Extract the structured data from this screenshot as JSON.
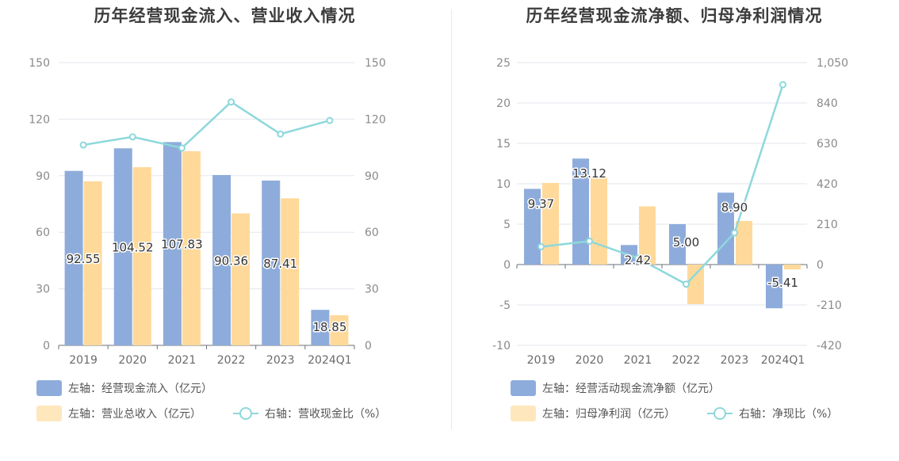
{
  "charts": [
    {
      "title": "历年经营现金流入、营业收入情况",
      "chart_data": {
        "type": "bar",
        "categories": [
          "2019",
          "2020",
          "2021",
          "2022",
          "2023",
          "2024Q1"
        ],
        "series": [
          {
            "name": "左轴：经营现金流入（亿元）",
            "type": "bar",
            "axis": "left",
            "color": "#8eacdb",
            "values": [
              92.55,
              104.52,
              107.83,
              90.36,
              87.41,
              18.85
            ],
            "labels": [
              "92.55",
              "104.52",
              "107.83",
              "90.36",
              "87.41",
              "18.85"
            ]
          },
          {
            "name": "左轴：营业总收入（亿元）",
            "type": "bar",
            "axis": "left",
            "color": "#ffd99a",
            "values": [
              87.0,
              94.5,
              103.0,
              70.0,
              78.0,
              16.0
            ]
          },
          {
            "name": "右轴：营收现金比（%）",
            "type": "line",
            "axis": "right",
            "color": "#8dd8dc",
            "values": [
              106.3,
              110.6,
              104.7,
              129.1,
              112.1,
              119.3
            ]
          }
        ],
        "y_left": {
          "range": [
            0,
            150
          ],
          "ticks": [
            "0",
            "30",
            "60",
            "90",
            "120",
            "150"
          ]
        },
        "y_right": {
          "range": [
            0,
            150
          ],
          "ticks": [
            "0",
            "30",
            "60",
            "90",
            "120",
            "150"
          ]
        },
        "grid": true,
        "legend_position": "bottom"
      }
    },
    {
      "title": "历年经营现金流净额、归母净利润情况",
      "chart_data": {
        "type": "bar",
        "categories": [
          "2019",
          "2020",
          "2021",
          "2022",
          "2023",
          "2024Q1"
        ],
        "series": [
          {
            "name": "左轴：经营活动现金流净额（亿元）",
            "type": "bar",
            "axis": "left",
            "color": "#8eacdb",
            "values": [
              9.37,
              13.12,
              2.42,
              5.0,
              8.9,
              -5.41
            ],
            "labels": [
              "9.37",
              "13.12",
              "2.42",
              "5.00",
              "8.90",
              "-5.41"
            ]
          },
          {
            "name": "左轴：归母净利润（亿元）",
            "type": "bar",
            "axis": "left",
            "color": "#ffd99a",
            "values": [
              10.1,
              10.8,
              7.2,
              -4.9,
              5.4,
              -0.6
            ]
          },
          {
            "name": "右轴：净现比（%）",
            "type": "line",
            "axis": "right",
            "color": "#8dd8dc",
            "values": [
              92.8,
              121.5,
              33.6,
              -102.0,
              164.8,
              935.0
            ]
          }
        ],
        "y_left": {
          "range": [
            -10,
            25
          ],
          "ticks": [
            "-10",
            "-5",
            "0",
            "5",
            "10",
            "15",
            "20",
            "25"
          ]
        },
        "y_right": {
          "range": [
            -420,
            1050
          ],
          "ticks": [
            "-420",
            "-210",
            "0",
            "210",
            "420",
            "630",
            "840",
            "1,050"
          ]
        },
        "grid": true,
        "legend_position": "bottom"
      }
    }
  ]
}
